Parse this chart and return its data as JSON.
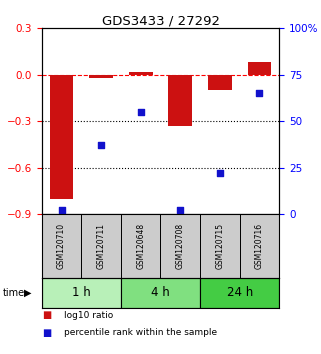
{
  "title": "GDS3433 / 27292",
  "samples": [
    "GSM120710",
    "GSM120711",
    "GSM120648",
    "GSM120708",
    "GSM120715",
    "GSM120716"
  ],
  "log10_ratio": [
    -0.8,
    -0.02,
    0.02,
    -0.33,
    -0.1,
    0.08
  ],
  "percentile_rank": [
    2.0,
    37.0,
    55.0,
    2.0,
    22.0,
    65.0
  ],
  "groups": [
    {
      "label": "1 h",
      "indices": [
        0,
        1
      ],
      "color": "#b8f0b8"
    },
    {
      "label": "4 h",
      "indices": [
        2,
        3
      ],
      "color": "#80e080"
    },
    {
      "label": "24 h",
      "indices": [
        4,
        5
      ],
      "color": "#44cc44"
    }
  ],
  "left_ylim": [
    -0.9,
    0.3
  ],
  "right_ylim": [
    0,
    100
  ],
  "left_yticks": [
    -0.9,
    -0.6,
    -0.3,
    0.0,
    0.3
  ],
  "right_yticks": [
    0,
    25,
    50,
    75,
    100
  ],
  "right_yticklabels": [
    "0",
    "25",
    "50",
    "75",
    "100%"
  ],
  "hlines_dotted": [
    -0.3,
    -0.6
  ],
  "hline_dashed": 0.0,
  "bar_color": "#cc1111",
  "dot_color": "#1111cc",
  "sample_box_color": "#cccccc",
  "legend_bar_label": "log10 ratio",
  "legend_dot_label": "percentile rank within the sample",
  "time_label": "time",
  "background_color": "#ffffff"
}
